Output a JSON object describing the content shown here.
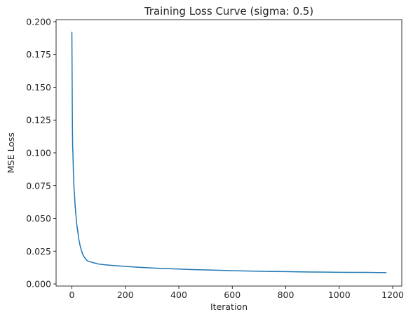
{
  "chart_data": {
    "type": "line",
    "title": "Training Loss Curve (sigma: 0.5)",
    "xlabel": "Iteration",
    "ylabel": "MSE Loss",
    "xlim": [
      -59,
      1234
    ],
    "ylim": [
      -0.0016,
      0.2016
    ],
    "xticks": [
      0,
      200,
      400,
      600,
      800,
      1000,
      1200
    ],
    "xtick_labels": [
      "0",
      "200",
      "400",
      "600",
      "800",
      "1000",
      "1200"
    ],
    "yticks": [
      0.0,
      0.025,
      0.05,
      0.075,
      0.1,
      0.125,
      0.15,
      0.175,
      0.2
    ],
    "ytick_labels": [
      "0.000",
      "0.025",
      "0.050",
      "0.075",
      "0.100",
      "0.125",
      "0.150",
      "0.175",
      "0.200"
    ],
    "grid": false,
    "color": "#1f77b4",
    "series": [
      {
        "x": [
          0,
          1,
          2,
          3,
          4,
          6,
          8,
          10,
          12,
          15,
          18,
          22,
          26,
          30,
          35,
          40,
          45,
          50,
          55,
          60,
          70,
          80,
          90,
          100,
          120,
          140,
          160,
          180,
          200,
          250,
          300,
          350,
          400,
          450,
          500,
          550,
          600,
          650,
          700,
          750,
          800,
          850,
          900,
          950,
          1000,
          1050,
          1100,
          1150,
          1175
        ],
        "y": [
          0.192,
          0.155,
          0.12,
          0.104,
          0.1,
          0.083,
          0.073,
          0.068,
          0.06,
          0.053,
          0.046,
          0.04,
          0.034,
          0.03,
          0.026,
          0.023,
          0.021,
          0.0195,
          0.0182,
          0.0175,
          0.0168,
          0.0162,
          0.0157,
          0.0152,
          0.0147,
          0.0143,
          0.014,
          0.0137,
          0.0134,
          0.0127,
          0.0122,
          0.0118,
          0.0114,
          0.011,
          0.0107,
          0.0104,
          0.0101,
          0.0099,
          0.0097,
          0.0095,
          0.0094,
          0.0092,
          0.0091,
          0.009,
          0.0089,
          0.0088,
          0.0088,
          0.0087,
          0.0087
        ]
      }
    ]
  }
}
